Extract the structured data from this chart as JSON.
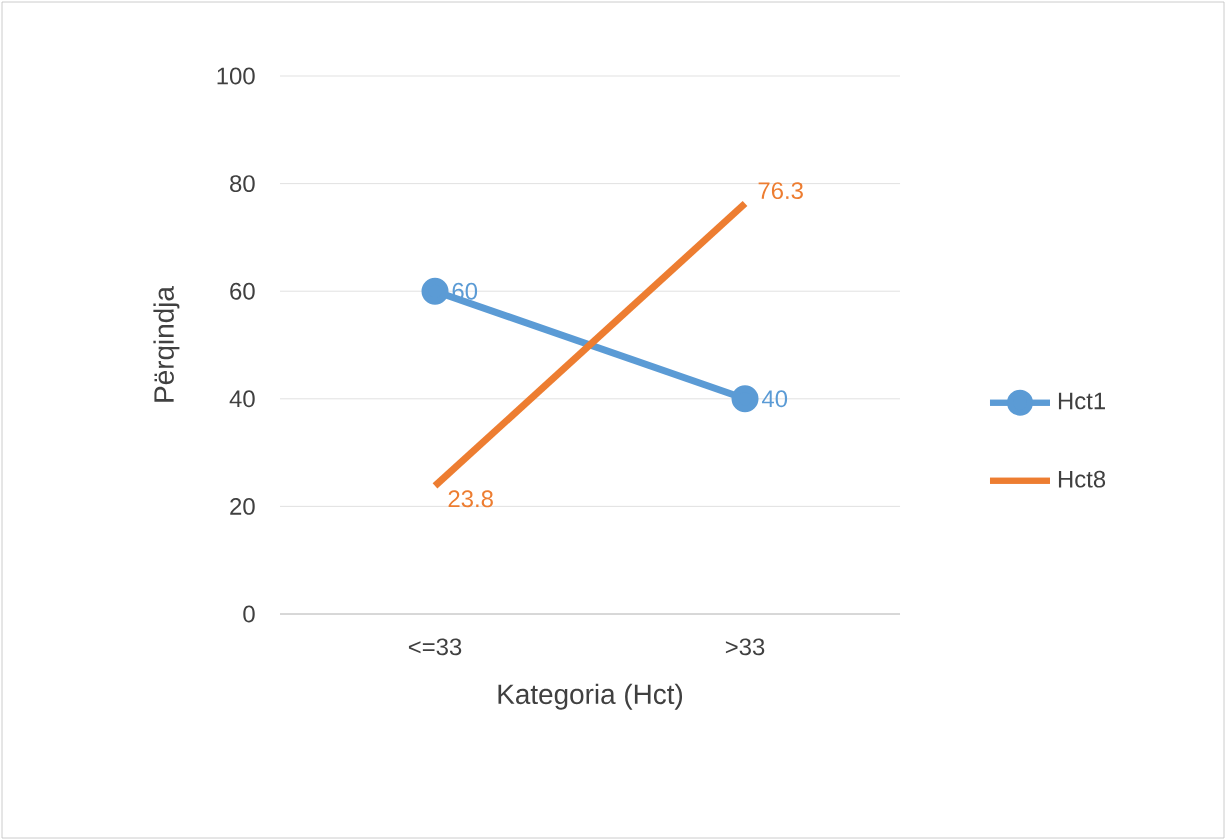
{
  "chart_data": {
    "type": "line",
    "xlabel": "Kategoria (Hct)",
    "ylabel": "Përqindja",
    "categories": [
      "<=33",
      ">33"
    ],
    "series": [
      {
        "name": "Hct1",
        "color": "#5b9bd5",
        "values": [
          60,
          40
        ],
        "marker": "circle"
      },
      {
        "name": "Hct8",
        "color": "#ed7d31",
        "values": [
          23.8,
          76.3
        ],
        "marker": "none"
      }
    ],
    "ylim": [
      0,
      100
    ],
    "yticks": [
      0,
      20,
      40,
      60,
      80,
      100
    ],
    "grid": "y",
    "legend": "right",
    "data_labels": true,
    "line_style": "solid"
  }
}
